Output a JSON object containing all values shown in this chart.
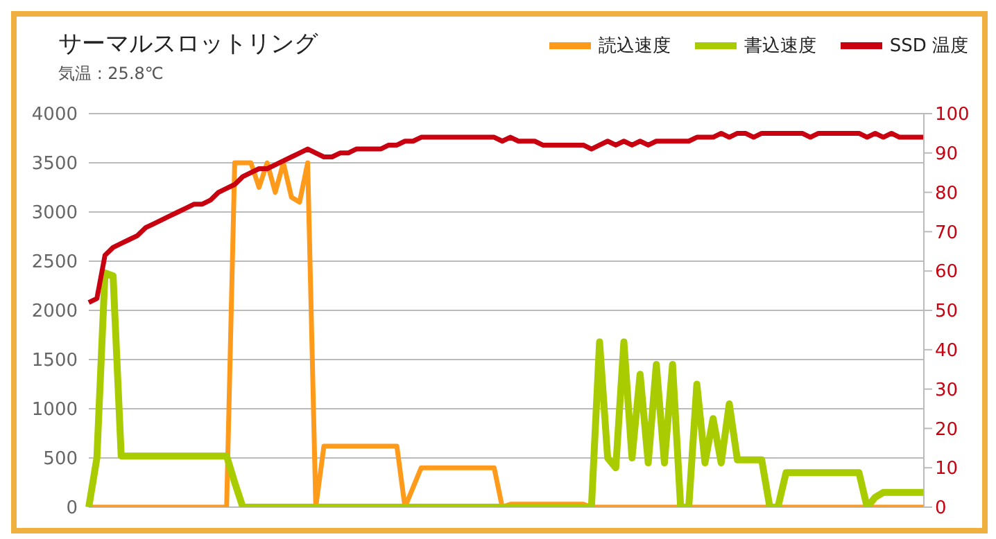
{
  "chart_data": {
    "type": "line",
    "title": "サーマルスロットリング",
    "subtitle": "気温 : 25.8℃",
    "categories": [
      null,
      null,
      null,
      null,
      null,
      null,
      null,
      null,
      null,
      null,
      null,
      null,
      null,
      null,
      null,
      null,
      null,
      null,
      null,
      null,
      null,
      null,
      null,
      null,
      null,
      null,
      null,
      null,
      null,
      null,
      null,
      null,
      null,
      null,
      null,
      null,
      null,
      null,
      null,
      null,
      null,
      null,
      null,
      null,
      null,
      null,
      null,
      null,
      null,
      null,
      null,
      null,
      null,
      null,
      null,
      null,
      null,
      null,
      null,
      null,
      null,
      null,
      null,
      null,
      null,
      null,
      null,
      null,
      null,
      null,
      null,
      null,
      null,
      null,
      null,
      null,
      null,
      null,
      null,
      null,
      null,
      null,
      null,
      null,
      null,
      null,
      null,
      null,
      null,
      null,
      null,
      null,
      null,
      null,
      null,
      null,
      null,
      null,
      null,
      null,
      null,
      null,
      null,
      null
    ],
    "series": [
      {
        "name": "読込速度",
        "color": "#ff9a1a",
        "values": [
          0,
          0,
          0,
          0,
          0,
          0,
          0,
          0,
          0,
          0,
          0,
          0,
          0,
          0,
          0,
          0,
          0,
          0,
          3500,
          3500,
          3500,
          3250,
          3500,
          3200,
          3500,
          3150,
          3100,
          3500,
          0,
          620,
          620,
          620,
          620,
          620,
          620,
          620,
          620,
          620,
          620,
          0,
          200,
          400,
          400,
          400,
          400,
          400,
          400,
          400,
          400,
          400,
          400,
          0,
          30,
          30,
          30,
          30,
          30,
          30,
          30,
          30,
          30,
          30,
          0,
          0,
          0,
          0,
          0,
          0,
          0,
          0,
          0,
          0,
          0,
          0,
          0,
          0,
          0,
          0,
          0,
          0,
          0,
          0,
          0,
          0,
          0,
          0,
          0,
          0,
          0,
          0,
          0,
          0,
          0,
          0,
          0,
          0,
          0,
          0,
          0,
          0,
          0,
          0,
          0,
          0
        ]
      },
      {
        "name": "書込速度",
        "color": "#a8cc00",
        "values": [
          0,
          500,
          2380,
          2350,
          520,
          520,
          520,
          520,
          520,
          520,
          520,
          520,
          520,
          520,
          520,
          520,
          520,
          520,
          250,
          0,
          0,
          0,
          0,
          0,
          0,
          0,
          0,
          0,
          0,
          0,
          0,
          0,
          0,
          0,
          0,
          0,
          0,
          0,
          0,
          0,
          0,
          0,
          0,
          0,
          0,
          0,
          0,
          0,
          0,
          0,
          0,
          0,
          0,
          0,
          0,
          0,
          0,
          0,
          0,
          0,
          0,
          0,
          0,
          1680,
          500,
          400,
          1680,
          500,
          1350,
          450,
          1450,
          450,
          1450,
          0,
          0,
          1250,
          450,
          900,
          450,
          1050,
          480,
          480,
          480,
          480,
          0,
          0,
          350,
          350,
          350,
          350,
          350,
          350,
          350,
          350,
          350,
          350,
          0,
          100,
          150,
          150,
          150,
          150,
          150,
          150
        ]
      },
      {
        "name": "SSD 温度",
        "color": "#c8000f",
        "axis": "y2",
        "values": [
          52,
          53,
          64,
          66,
          67,
          68,
          69,
          71,
          72,
          73,
          74,
          75,
          76,
          77,
          77,
          78,
          80,
          81,
          82,
          84,
          85,
          86,
          86,
          87,
          88,
          89,
          90,
          91,
          90,
          89,
          89,
          90,
          90,
          91,
          91,
          91,
          91,
          92,
          92,
          93,
          93,
          94,
          94,
          94,
          94,
          94,
          94,
          94,
          94,
          94,
          94,
          93,
          94,
          93,
          93,
          93,
          92,
          92,
          92,
          92,
          92,
          92,
          91,
          92,
          93,
          92,
          93,
          92,
          93,
          92,
          93,
          93,
          93,
          93,
          93,
          94,
          94,
          94,
          95,
          94,
          95,
          95,
          94,
          95,
          95,
          95,
          95,
          95,
          95,
          94,
          95,
          95,
          95,
          95,
          95,
          95,
          94,
          95,
          94,
          95,
          94,
          94,
          94,
          94
        ]
      }
    ],
    "ylim": [
      0,
      4000
    ],
    "yticks": [
      0,
      500,
      1000,
      1500,
      2000,
      2500,
      3000,
      3500,
      4000
    ],
    "y2lim": [
      0,
      100
    ],
    "y2ticks": [
      0,
      10,
      20,
      30,
      40,
      50,
      60,
      70,
      80,
      90,
      100
    ],
    "grid": "y",
    "legend": "top right",
    "marker": "none",
    "line_style": "solid",
    "tick_labels": "y"
  }
}
